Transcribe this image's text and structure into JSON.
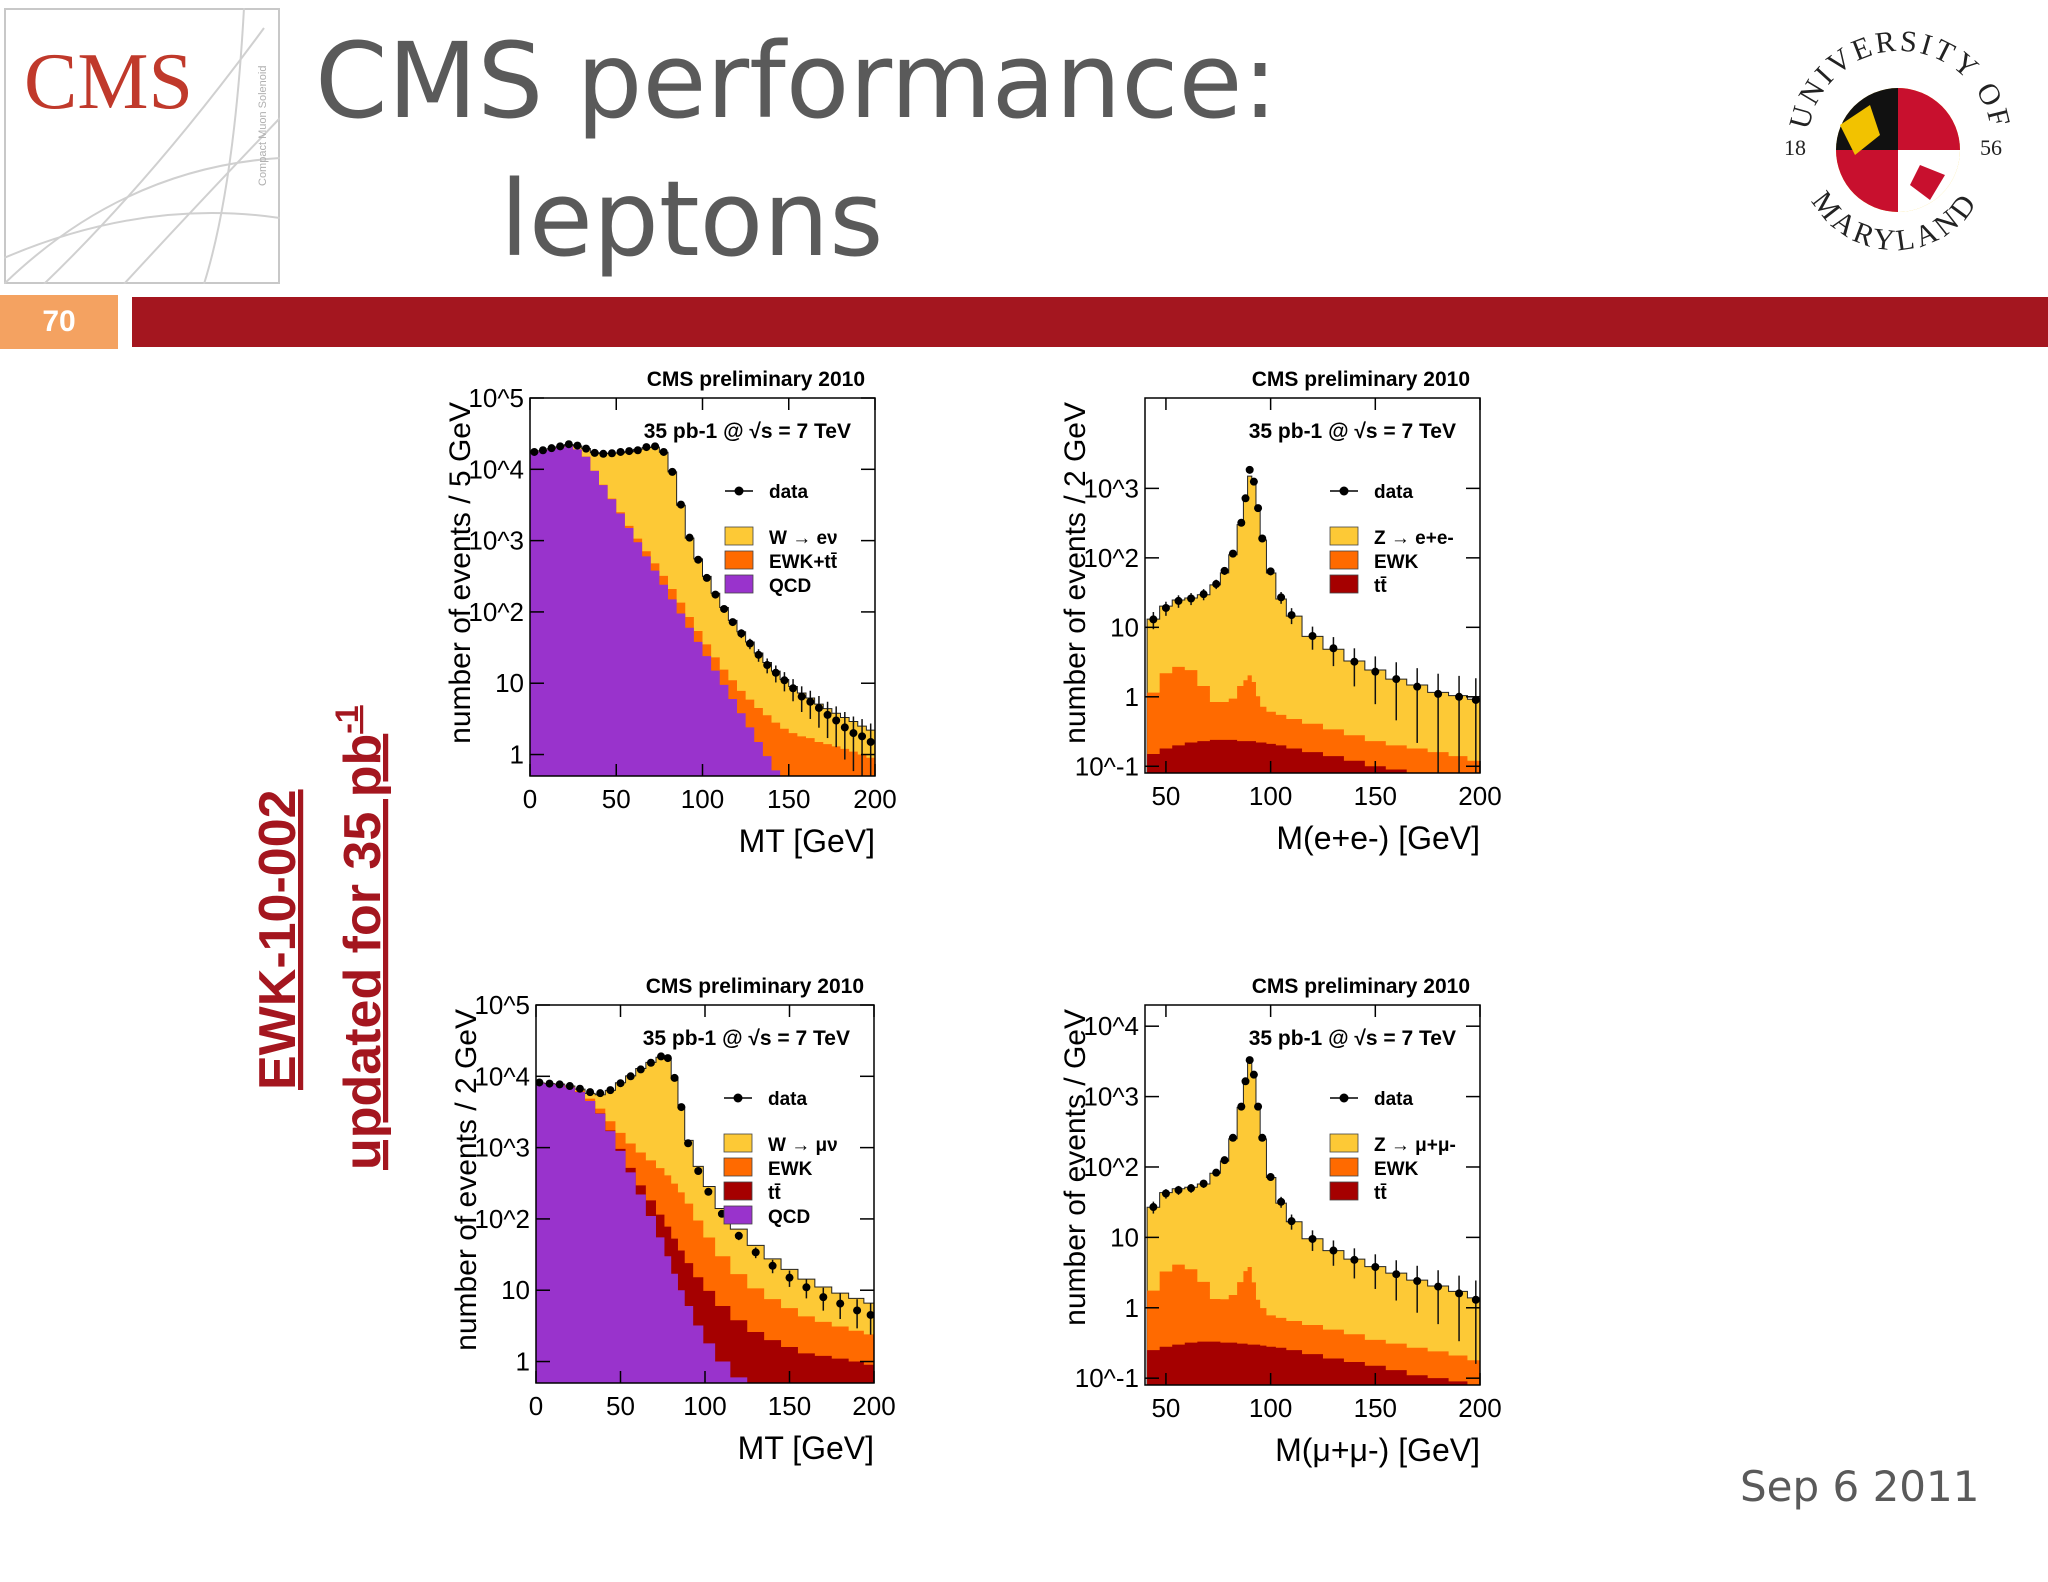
{
  "slide": {
    "title_line1": "CMS performance:",
    "title_line2": "leptons",
    "slide_number": "70",
    "cms_logo_text": "CMS",
    "cms_logo_subtext": "Compact Muon Solenoid",
    "seal_text_top": "UNIVERSITY OF",
    "seal_text_bottom": "MARYLAND",
    "seal_year_left": "18",
    "seal_year_right": "56",
    "side_label_line1": "EWK-10-002",
    "side_label_line2_main": "updated for 35 pb",
    "side_label_line2_sup": "-1",
    "date": "Sep 6 2011"
  },
  "colors": {
    "signal": "#fdc936",
    "ewk": "#ff6a00",
    "ttbar": "#a50000",
    "qcd": "#9933cc",
    "header_bar": "#a4161f",
    "slide_number_bg": "#f4a261",
    "side_label": "#a4161f"
  },
  "chart_data": [
    {
      "id": "w-enu-mt",
      "type": "area",
      "log_y": true,
      "header": "CMS preliminary 2010",
      "lumi_text": "35 pb-1 @ √s = 7 TeV",
      "xlabel": "MT [GeV]",
      "ylabel": "number of events / 5 GeV",
      "xlim": [
        0,
        200
      ],
      "ylim": [
        0.5,
        100000
      ],
      "xticks": [
        "0",
        "50",
        "100",
        "150",
        "200"
      ],
      "yticks": [
        "1",
        "10",
        "10^2",
        "10^3",
        "10^4",
        "10^5"
      ],
      "legend": [
        "data",
        "W → eν",
        "EWK+tt̄",
        "QCD"
      ],
      "legend_placement": "top-right",
      "x": [
        2.5,
        7.5,
        12.5,
        17.5,
        22.5,
        27.5,
        32.5,
        37.5,
        42.5,
        47.5,
        52.5,
        57.5,
        62.5,
        67.5,
        72.5,
        77.5,
        82.5,
        87.5,
        92.5,
        97.5,
        102.5,
        107.5,
        112.5,
        117.5,
        122.5,
        127.5,
        132.5,
        137.5,
        142.5,
        147.5,
        152.5,
        157.5,
        162.5,
        167.5,
        172.5,
        177.5,
        182.5,
        187.5,
        192.5,
        197.5
      ],
      "series": [
        {
          "name": "QCD",
          "values": [
            17000,
            18000,
            19000,
            20000,
            21000,
            19000,
            15000,
            9500,
            6000,
            3800,
            2400,
            1500,
            950,
            600,
            380,
            240,
            150,
            95,
            60,
            38,
            24,
            15,
            9.5,
            6,
            3.8,
            2.4,
            1.5,
            0.95,
            0.6,
            0.4,
            0.4,
            0.4,
            0.4,
            0.4,
            0.4,
            0.4,
            0.4,
            0.4,
            0.4,
            0.4
          ]
        },
        {
          "name": "EWK+tt̄",
          "values": [
            10,
            12,
            15,
            18,
            22,
            30,
            40,
            55,
            70,
            85,
            100,
            110,
            115,
            110,
            100,
            80,
            60,
            40,
            25,
            16,
            11,
            8,
            6,
            5,
            4,
            3.5,
            3,
            2.6,
            2.2,
            1.9,
            1.6,
            1.4,
            1.3,
            1.1,
            1.0,
            0.9,
            0.8,
            0.7,
            0.6,
            0.5
          ]
        },
        {
          "name": "W → eν",
          "values": [
            100,
            200,
            400,
            700,
            1200,
            2200,
            4500,
            7500,
            10500,
            13000,
            14500,
            16000,
            18000,
            19500,
            20000,
            17000,
            9000,
            3000,
            1000,
            500,
            280,
            160,
            100,
            65,
            45,
            32,
            22,
            16,
            12,
            9,
            7,
            5.5,
            4.5,
            3.6,
            3.0,
            2.5,
            2.1,
            1.8,
            1.5,
            1.3
          ]
        }
      ],
      "data": [
        17500,
        18500,
        19800,
        21000,
        22500,
        21500,
        19500,
        17000,
        16500,
        16800,
        17500,
        18000,
        18500,
        20500,
        21000,
        17500,
        9200,
        3200,
        1100,
        540,
        300,
        175,
        110,
        72,
        50,
        36,
        25,
        18,
        14,
        11,
        8.5,
        6.5,
        5.5,
        4.5,
        3.6,
        3.0,
        2.4,
        2.0,
        1.8,
        1.5
      ]
    },
    {
      "id": "z-ee-mass",
      "type": "area",
      "log_y": true,
      "header": "CMS preliminary 2010",
      "lumi_text": "35 pb-1 @ √s = 7 TeV",
      "xlabel": "M(e+e-) [GeV]",
      "ylabel": "number of events / 2 GeV",
      "xlim": [
        40,
        200
      ],
      "ylim": [
        0.08,
        20000
      ],
      "xticks": [
        "50",
        "100",
        "150",
        "200"
      ],
      "yticks": [
        "10^-1",
        "1",
        "10",
        "10^2",
        "10^3"
      ],
      "legend": [
        "data",
        "Z → e+e-",
        "EWK",
        "tt̄"
      ],
      "legend_placement": "top-right",
      "x": [
        44,
        50,
        56,
        62,
        68,
        74,
        78,
        82,
        86,
        88,
        90,
        92,
        94,
        96,
        100,
        105,
        110,
        120,
        130,
        140,
        150,
        160,
        170,
        180,
        190,
        198
      ],
      "series": [
        {
          "name": "tt̄",
          "values": [
            0.15,
            0.18,
            0.2,
            0.22,
            0.23,
            0.24,
            0.24,
            0.24,
            0.23,
            0.23,
            0.23,
            0.23,
            0.22,
            0.22,
            0.21,
            0.2,
            0.18,
            0.16,
            0.14,
            0.12,
            0.1,
            0.09,
            0.08,
            0.07,
            0.06,
            0.05
          ]
        },
        {
          "name": "EWK",
          "values": [
            1.0,
            2.0,
            2.5,
            2.2,
            1.2,
            0.6,
            0.6,
            0.7,
            1.2,
            1.5,
            1.8,
            1.4,
            0.8,
            0.5,
            0.4,
            0.35,
            0.3,
            0.25,
            0.2,
            0.16,
            0.13,
            0.11,
            0.1,
            0.09,
            0.08,
            0.07
          ]
        },
        {
          "name": "Z → e+e-",
          "values": [
            12,
            18,
            22,
            24,
            28,
            40,
            60,
            110,
            300,
            700,
            1500,
            1200,
            500,
            180,
            60,
            25,
            14,
            7,
            4.5,
            3,
            2.2,
            1.6,
            1.3,
            1.0,
            0.9,
            0.8
          ]
        }
      ],
      "data": [
        13,
        19,
        24,
        26,
        30,
        42,
        65,
        115,
        320,
        720,
        1850,
        1250,
        520,
        190,
        64,
        27,
        15,
        7.5,
        5,
        3.2,
        2.3,
        1.8,
        1.4,
        1.1,
        1.0,
        0.9
      ]
    },
    {
      "id": "w-munu-mt",
      "type": "area",
      "log_y": true,
      "header": "CMS preliminary 2010",
      "lumi_text": "35 pb-1 @ √s = 7 TeV",
      "xlabel": "MT [GeV]",
      "ylabel": "number of events / 2 GeV",
      "xlim": [
        0,
        200
      ],
      "ylim": [
        0.5,
        100000
      ],
      "xticks": [
        "0",
        "50",
        "100",
        "150",
        "200"
      ],
      "yticks": [
        "1",
        "10",
        "10^2",
        "10^3",
        "10^4",
        "10^5"
      ],
      "legend": [
        "data",
        "W → μν",
        "EWK",
        "tt̄",
        "QCD"
      ],
      "legend_placement": "top-right",
      "x": [
        2,
        8,
        14,
        20,
        26,
        32,
        38,
        44,
        50,
        56,
        62,
        68,
        74,
        78,
        82,
        86,
        90,
        96,
        102,
        110,
        120,
        130,
        140,
        150,
        160,
        170,
        180,
        190,
        198
      ],
      "series": [
        {
          "name": "QCD",
          "values": [
            8000,
            7800,
            7600,
            7000,
            6000,
            4500,
            3000,
            1700,
            900,
            450,
            220,
            110,
            55,
            30,
            17,
            10,
            6,
            3.2,
            1.8,
            1.0,
            0.6,
            0.4,
            0.4,
            0.4,
            0.4,
            0.4,
            0.4,
            0.4,
            0.4
          ]
        },
        {
          "name": "tt̄",
          "values": [
            1,
            1.5,
            2,
            3,
            5,
            10,
            20,
            40,
            60,
            70,
            75,
            72,
            60,
            48,
            36,
            26,
            18,
            12,
            8,
            5,
            3.2,
            2.2,
            1.6,
            1.2,
            0.9,
            0.8,
            0.7,
            0.6,
            0.5
          ]
        },
        {
          "name": "EWK",
          "values": [
            20,
            40,
            70,
            120,
            200,
            350,
            500,
            600,
            650,
            620,
            560,
            480,
            400,
            330,
            260,
            200,
            140,
            80,
            45,
            24,
            13,
            8,
            5.5,
            4,
            3,
            2.4,
            2.0,
            1.7,
            1.5
          ]
        },
        {
          "name": "W → μν",
          "values": [
            30,
            60,
            100,
            200,
            400,
            900,
            2000,
            4000,
            6500,
            9000,
            12000,
            15000,
            18000,
            17500,
            9000,
            3500,
            1100,
            450,
            230,
            110,
            55,
            32,
            20,
            14,
            10,
            7.5,
            6,
            5,
            4.2
          ]
        }
      ],
      "data": [
        8200,
        7900,
        7700,
        7300,
        6700,
        6000,
        5800,
        6400,
        8000,
        10000,
        12500,
        15500,
        19000,
        18000,
        9500,
        3700,
        1150,
        470,
        240,
        118,
        58,
        34,
        22,
        15,
        11,
        8,
        6.5,
        5.2,
        4.5
      ]
    },
    {
      "id": "z-mumu-mass",
      "type": "area",
      "log_y": true,
      "header": "CMS preliminary 2010",
      "lumi_text": "35 pb-1 @ √s = 7 TeV",
      "xlabel": "M(μ+μ-) [GeV]",
      "ylabel": "number of events / GeV",
      "xlim": [
        40,
        200
      ],
      "ylim": [
        0.08,
        20000
      ],
      "xticks": [
        "50",
        "100",
        "150",
        "200"
      ],
      "yticks": [
        "10^-1",
        "1",
        "10",
        "10^2",
        "10^3",
        "10^4"
      ],
      "legend": [
        "data",
        "Z → μ+μ-",
        "EWK",
        "tt̄"
      ],
      "legend_placement": "top-right",
      "x": [
        44,
        50,
        56,
        62,
        68,
        74,
        78,
        82,
        86,
        88,
        90,
        92,
        94,
        96,
        100,
        105,
        110,
        120,
        130,
        140,
        150,
        160,
        170,
        180,
        190,
        198
      ],
      "series": [
        {
          "name": "tt̄",
          "values": [
            0.25,
            0.28,
            0.3,
            0.32,
            0.33,
            0.33,
            0.32,
            0.32,
            0.31,
            0.31,
            0.3,
            0.3,
            0.3,
            0.29,
            0.28,
            0.27,
            0.25,
            0.22,
            0.19,
            0.17,
            0.15,
            0.13,
            0.11,
            0.1,
            0.09,
            0.08
          ]
        },
        {
          "name": "EWK",
          "values": [
            1.5,
            3.0,
            3.8,
            3.2,
            2.0,
            1.0,
            1.0,
            1.2,
            2.0,
            3.0,
            3.5,
            2.0,
            1.0,
            0.7,
            0.5,
            0.45,
            0.4,
            0.35,
            0.3,
            0.25,
            0.2,
            0.18,
            0.16,
            0.14,
            0.12,
            0.1
          ]
        },
        {
          "name": "Z → μ+μ-",
          "values": [
            25,
            40,
            45,
            48,
            55,
            80,
            120,
            250,
            700,
            1600,
            3200,
            2000,
            700,
            250,
            70,
            30,
            16,
            9,
            6,
            4.5,
            3.5,
            2.8,
            2.2,
            1.8,
            1.5,
            1.2
          ]
        }
      ],
      "data": [
        27,
        42,
        47,
        50,
        58,
        83,
        125,
        260,
        720,
        1650,
        3300,
        2050,
        720,
        260,
        72,
        32,
        17,
        9.5,
        6.5,
        4.8,
        3.8,
        3.0,
        2.4,
        2.0,
        1.6,
        1.3
      ]
    }
  ]
}
